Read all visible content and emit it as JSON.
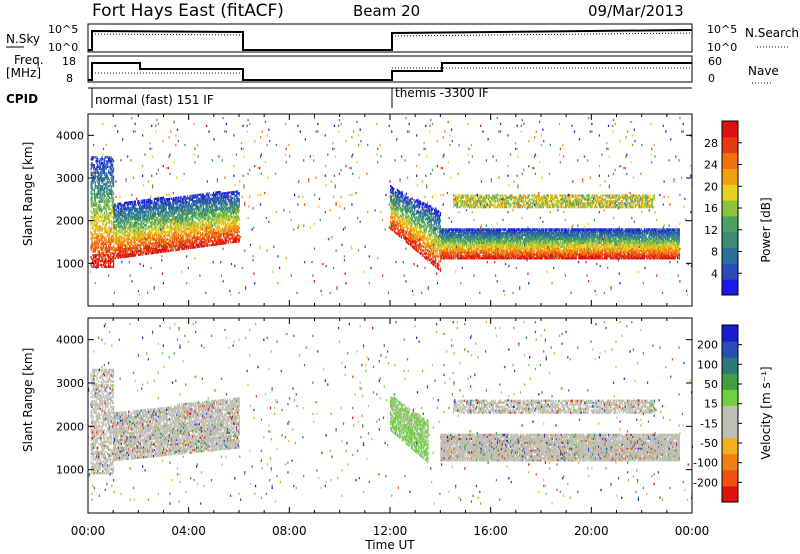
{
  "header": {
    "station": "Fort Hays East (fitACF)",
    "beam": "Beam 20",
    "date": "09/Mar/2013"
  },
  "noise_panel": {
    "left_label": "N.Sky",
    "right_label": "N.Search",
    "left_ticks": [
      "10^5",
      "10^0"
    ],
    "right_ticks": [
      "10^5",
      "10^0"
    ]
  },
  "freq_panel": {
    "left_label_1": "Freq.",
    "left_label_2": "[MHz]",
    "right_label": "Nave",
    "left_ticks": [
      "18",
      "8"
    ],
    "right_ticks": [
      "60",
      "0"
    ]
  },
  "cpid_panel": {
    "label": "CPID",
    "mode_1": "normal (fast) 151 IF",
    "mode_2": "themis -3300 IF"
  },
  "colors": {
    "panel_border": "#000000",
    "ground_scatter": "#bebeb4"
  },
  "chart_data": [
    {
      "type": "heatmap",
      "title": "",
      "xlabel": "Time UT",
      "ylabel": "Slant Range [km]",
      "xlim": [
        0,
        24
      ],
      "ylim": [
        0,
        4500
      ],
      "x_ticks": [
        "00:00",
        "04:00",
        "08:00",
        "12:00",
        "16:00",
        "20:00",
        "00:00"
      ],
      "y_ticks": [
        "1000",
        "2000",
        "3000",
        "4000"
      ],
      "colorbar": {
        "label": "Power [dB]",
        "ticks": [
          "4",
          "8",
          "12",
          "16",
          "20",
          "24",
          "28"
        ],
        "range": [
          0,
          30
        ],
        "colors": [
          "#1a1ae6",
          "#2a4cb8",
          "#2a6e9a",
          "#3a8c78",
          "#4aa060",
          "#8ec23a",
          "#e8d020",
          "#f0a010",
          "#f07010",
          "#e83a10",
          "#e01010"
        ]
      },
      "data_gaps_hours": [
        [
          6,
          12
        ]
      ],
      "mode_change_hours": [
        2,
        14
      ]
    },
    {
      "type": "heatmap",
      "title": "",
      "xlabel": "Time UT",
      "ylabel": "Slant Range [km]",
      "xlim": [
        0,
        24
      ],
      "ylim": [
        0,
        4500
      ],
      "x_ticks": [
        "00:00",
        "04:00",
        "08:00",
        "12:00",
        "16:00",
        "20:00",
        "00:00"
      ],
      "y_ticks": [
        "1000",
        "2000",
        "3000",
        "4000"
      ],
      "colorbar": {
        "label": "Velocity [m s⁻¹]",
        "ticks": [
          "200",
          "100",
          "50",
          "15",
          "-15",
          "-50",
          "-100",
          "-200"
        ],
        "range": [
          -250,
          250
        ],
        "colors": [
          "#e01010",
          "#f05010",
          "#f08010",
          "#f0b020",
          "#bebeb4",
          "#bebeb4",
          "#70d040",
          "#40a040",
          "#2a7a7a",
          "#2a4cb8",
          "#1a1ad0"
        ]
      },
      "data_gaps_hours": [
        [
          6,
          12
        ]
      ]
    }
  ]
}
